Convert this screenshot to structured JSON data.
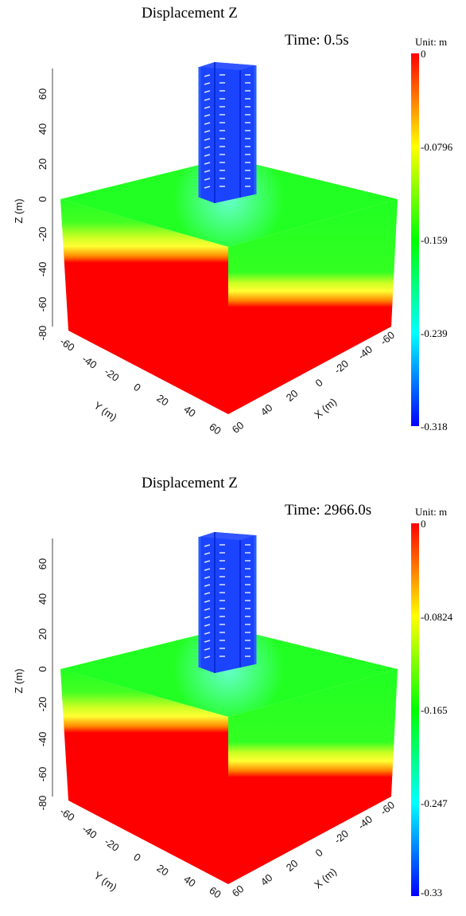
{
  "panels": [
    {
      "title": "Displacement Z",
      "time": "Time: 0.5s",
      "unit": "Unit:   m",
      "colorbar": [
        "0",
        "-0.0796",
        "-0.159",
        "-0.239",
        "-0.318"
      ]
    },
    {
      "title": "Displacement Z",
      "time": "Time: 2966.0s",
      "unit": "Unit:   m",
      "colorbar": [
        "0",
        "-0.0824",
        "-0.165",
        "-0.247",
        "-0.33"
      ]
    }
  ],
  "axes": {
    "z_label": "Z (m)",
    "y_label": "Y (m)",
    "x_label": "X (m)",
    "z_ticks": [
      "60",
      "40",
      "20",
      "0",
      "-20",
      "-40",
      "-60",
      "-80"
    ],
    "y_ticks": [
      "-60",
      "-40",
      "-20",
      "0",
      "20",
      "40",
      "60"
    ],
    "x_ticks": [
      "60",
      "40",
      "20",
      "0",
      "-20",
      "-40",
      "-60"
    ]
  },
  "colors": {
    "colorbar_stops": [
      "#ff0000",
      "#ffff00",
      "#00ff00",
      "#00ffff",
      "#0000ff"
    ],
    "soil_top": "#22ff22",
    "soil_layer": "#ffff33",
    "soil_bottom": "#ff0000",
    "building": "#1a44ff"
  }
}
